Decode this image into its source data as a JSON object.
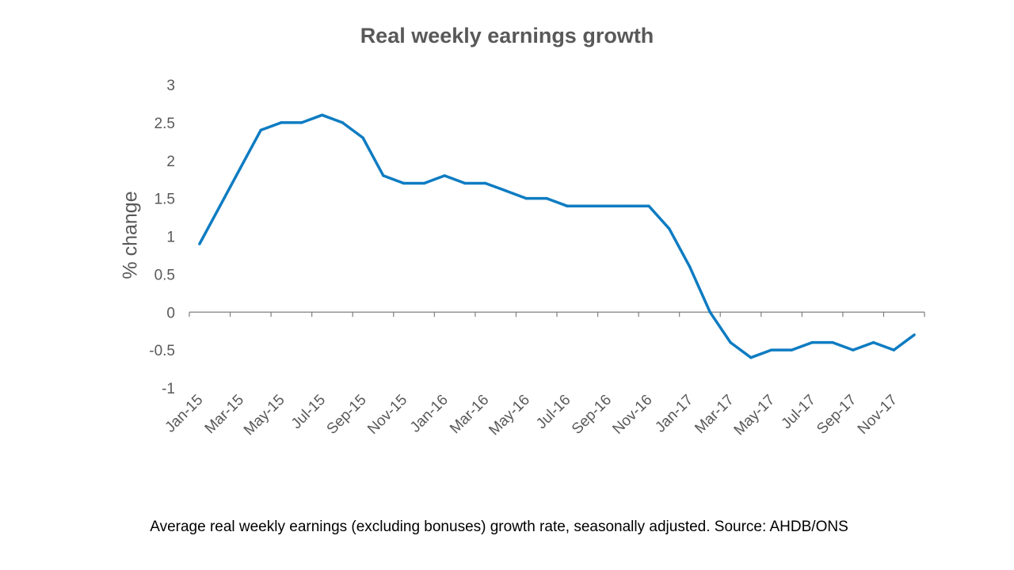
{
  "colors": {
    "line": "#0e7cc2",
    "axis": "#7f7f7f",
    "text": "#595959"
  },
  "caption": "Average real weekly earnings (excluding bonuses) growth rate, seasonally adjusted. Source: AHDB/ONS",
  "chart_data": {
    "type": "line",
    "title": "Real weekly earnings growth",
    "xlabel": "",
    "ylabel": "% change",
    "ylim": [
      -1,
      3
    ],
    "yticks": [
      3,
      2.5,
      2,
      1.5,
      1,
      0.5,
      0,
      -0.5,
      -1
    ],
    "ytick_labels": [
      "3",
      "2.5",
      "2",
      "1.5",
      "1",
      "0.5",
      "0",
      "-0.5",
      "-1"
    ],
    "grid": false,
    "legend": "none",
    "categories": [
      "Jan-15",
      "Feb-15",
      "Mar-15",
      "Apr-15",
      "May-15",
      "Jun-15",
      "Jul-15",
      "Aug-15",
      "Sep-15",
      "Oct-15",
      "Nov-15",
      "Dec-15",
      "Jan-16",
      "Feb-16",
      "Mar-16",
      "Apr-16",
      "May-16",
      "Jun-16",
      "Jul-16",
      "Aug-16",
      "Sep-16",
      "Oct-16",
      "Nov-16",
      "Dec-16",
      "Jan-17",
      "Feb-17",
      "Mar-17",
      "Apr-17",
      "May-17",
      "Jun-17",
      "Jul-17",
      "Aug-17",
      "Sep-17",
      "Oct-17",
      "Nov-17",
      "Dec-17"
    ],
    "xtick_labels": [
      "Jan-15",
      "Mar-15",
      "May-15",
      "Jul-15",
      "Sep-15",
      "Nov-15",
      "Jan-16",
      "Mar-16",
      "May-16",
      "Jul-16",
      "Sep-16",
      "Nov-16",
      "Jan-17",
      "Mar-17",
      "May-17",
      "Jul-17",
      "Sep-17",
      "Nov-17"
    ],
    "series": [
      {
        "name": "Real weekly earnings growth",
        "values": [
          0.9,
          1.4,
          1.9,
          2.4,
          2.5,
          2.5,
          2.6,
          2.5,
          2.3,
          1.8,
          1.7,
          1.7,
          1.8,
          1.7,
          1.7,
          1.6,
          1.5,
          1.5,
          1.4,
          1.4,
          1.4,
          1.4,
          1.4,
          1.1,
          0.6,
          0,
          -0.4,
          -0.6,
          -0.5,
          -0.5,
          -0.4,
          -0.4,
          -0.5,
          -0.4,
          -0.5,
          -0.3
        ]
      }
    ]
  }
}
